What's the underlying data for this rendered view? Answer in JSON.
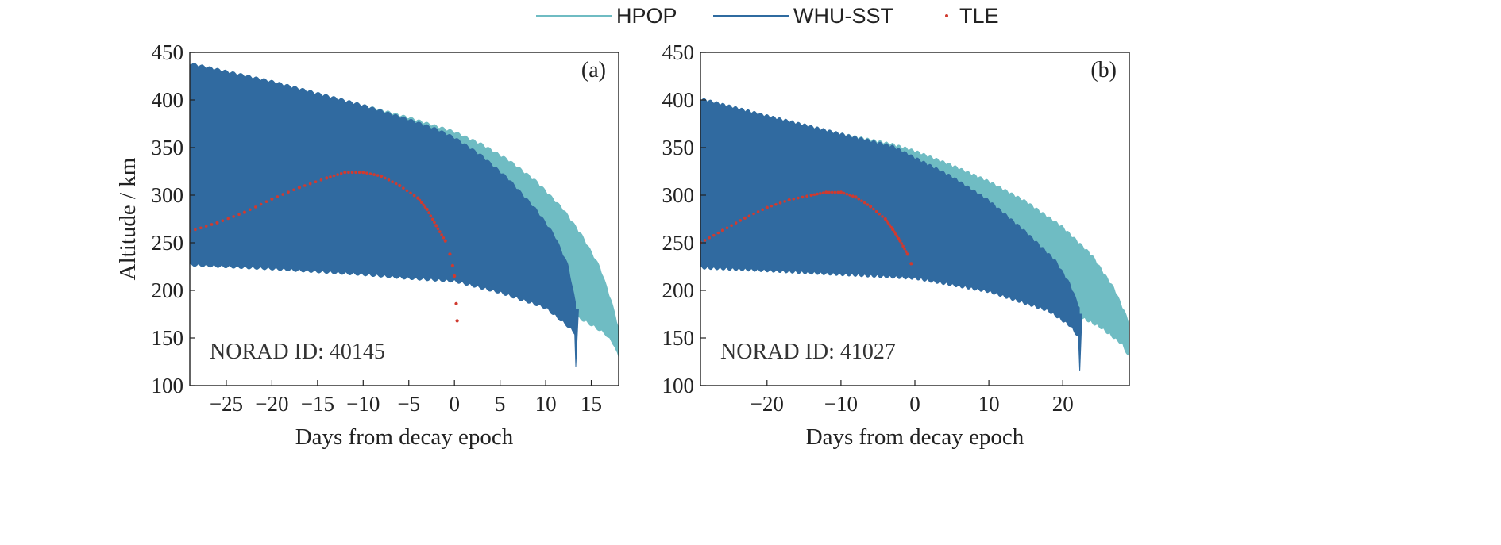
{
  "legend": {
    "items": [
      {
        "label": "HPOP",
        "color": "#6fbcc3",
        "kind": "line"
      },
      {
        "label": "WHU-SST",
        "color": "#2f6ba0",
        "kind": "line"
      },
      {
        "label": "TLE",
        "color": "#d03a2f",
        "kind": "dot"
      }
    ]
  },
  "colors": {
    "hpop": "#6fbcc3",
    "whu_sst": "#306aa0",
    "tle": "#d03a2f",
    "axis": "#222222"
  },
  "chart_data": [
    {
      "type": "area",
      "panel_label": "(a)",
      "annotation": "NORAD ID: 40145",
      "xlabel": "Days from decay epoch",
      "ylabel": "Altitude / km",
      "xlim": [
        -29,
        18
      ],
      "ylim": [
        100,
        450
      ],
      "xticks": [
        -25,
        -20,
        -15,
        -10,
        -5,
        0,
        5,
        10,
        15
      ],
      "xtick_labels": [
        "−25",
        "−20",
        "−15",
        "−10",
        "−5",
        "0",
        "5",
        "10",
        "15"
      ],
      "yticks": [
        100,
        150,
        200,
        250,
        300,
        350,
        400,
        450
      ],
      "grid": false,
      "series": [
        {
          "name": "HPOP",
          "upper": {
            "x": [
              -29,
              -20,
              -10,
              -5,
              0,
              3,
              6,
              9,
              12,
              14,
              16,
              17.2,
              18
            ],
            "y": [
              437,
              418,
              393,
              380,
              365,
              352,
              335,
              313,
              283,
              256,
              222,
              188,
              160
            ]
          },
          "lower": {
            "x": [
              -29,
              -20,
              -10,
              -5,
              0,
              5,
              10,
              13,
              15,
              16.5,
              17.5,
              18
            ],
            "y": [
              228,
              224,
              218,
              214,
              211,
              204,
              190,
              176,
              165,
              156,
              144,
              130
            ]
          }
        },
        {
          "name": "WHU-SST",
          "upper": {
            "x": [
              -29,
              -20,
              -10,
              -5,
              -2,
              0,
              3,
              6,
              9,
              11,
              12.5,
              13.3
            ],
            "y": [
              437,
              418,
              393,
              378,
              368,
              359,
              340,
              315,
              283,
              256,
              224,
              185
            ]
          },
          "lower": {
            "x": [
              -29,
              -20,
              -10,
              -5,
              0,
              5,
              10,
              12.5,
              13.3
            ],
            "y": [
              228,
              224,
              218,
              214,
              211,
              199,
              183,
              163,
              155
            ]
          },
          "tail": {
            "x": [
              13.1,
              13.3,
              13.6
            ],
            "y": [
              180,
              120,
              180
            ]
          }
        },
        {
          "name": "TLE",
          "x": [
            -29,
            -26,
            -23,
            -20,
            -17,
            -14,
            -12,
            -10,
            -8,
            -6,
            -4,
            -3,
            -2,
            -1,
            -0.5,
            -0.2,
            0,
            0.2,
            0.3
          ],
          "y": [
            262,
            271,
            282,
            296,
            308,
            318,
            324,
            324,
            320,
            310,
            297,
            285,
            268,
            252,
            238,
            226,
            215,
            186,
            168
          ]
        }
      ]
    },
    {
      "type": "area",
      "panel_label": "(b)",
      "annotation": "NORAD ID: 41027",
      "xlabel": "Days from decay epoch",
      "ylabel": "",
      "xlim": [
        -29,
        29
      ],
      "ylim": [
        100,
        450
      ],
      "xticks": [
        -20,
        -10,
        0,
        10,
        20
      ],
      "xtick_labels": [
        "−20",
        "−10",
        "0",
        "10",
        "20"
      ],
      "yticks": [
        100,
        150,
        200,
        250,
        300,
        350,
        400,
        450
      ],
      "grid": false,
      "series": [
        {
          "name": "HPOP",
          "upper": {
            "x": [
              -29,
              -20,
              -10,
              -3,
              0,
              5,
              10,
              15,
              20,
              24,
              27,
              29
            ],
            "y": [
              400,
              382,
              363,
              352,
              345,
              330,
              313,
              292,
              265,
              235,
              200,
              165
            ]
          },
          "lower": {
            "x": [
              -29,
              -20,
              -10,
              0,
              10,
              18,
              22,
              25,
              28,
              29
            ],
            "y": [
              225,
              222,
              218,
              215,
              203,
              187,
              175,
              163,
              145,
              130
            ]
          }
        },
        {
          "name": "WHU-SST",
          "upper": {
            "x": [
              -29,
              -20,
              -10,
              -3,
              0,
              5,
              10,
              15,
              19,
              21,
              22.3
            ],
            "y": [
              400,
              382,
              363,
              350,
              338,
              318,
              293,
              260,
              230,
              205,
              180
            ]
          },
          "lower": {
            "x": [
              -29,
              -20,
              -10,
              0,
              10,
              18,
              21,
              22.3
            ],
            "y": [
              225,
              222,
              218,
              214,
              200,
              180,
              164,
              150
            ]
          },
          "tail": {
            "x": [
              22.0,
              22.3,
              22.6
            ],
            "y": [
              175,
              115,
              175
            ]
          }
        },
        {
          "name": "TLE",
          "x": [
            -29,
            -26,
            -23,
            -20,
            -17,
            -14,
            -12,
            -10,
            -8,
            -6,
            -4,
            -3,
            -2,
            -1,
            -0.5
          ],
          "y": [
            250,
            263,
            276,
            287,
            295,
            300,
            303,
            303,
            298,
            288,
            275,
            264,
            252,
            238,
            228
          ]
        }
      ]
    }
  ]
}
